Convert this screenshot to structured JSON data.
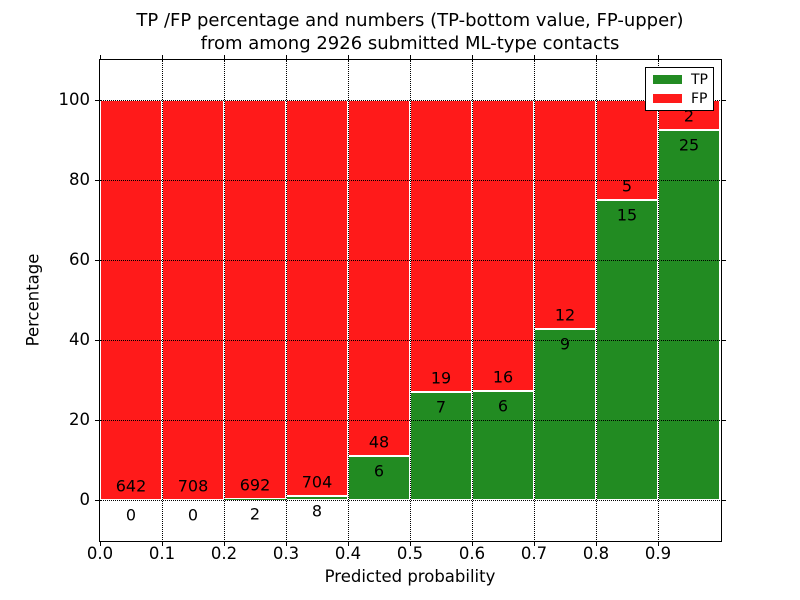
{
  "title": {
    "line1": "TP /FP percentage and numbers (TP-bottom value, FP-upper)",
    "line2": "from among 2926 submitted ML-type contacts"
  },
  "chart_data": {
    "type": "bar",
    "subtype": "stacked-percentage",
    "title": "TP /FP percentage and numbers (TP-bottom value, FP-upper) from among 2926 submitted ML-type contacts",
    "xlabel": "Predicted probability",
    "ylabel": "Percentage",
    "bin_edges": [
      0.0,
      0.1,
      0.2,
      0.3,
      0.4,
      0.5,
      0.6,
      0.7,
      0.8,
      0.9,
      1.0
    ],
    "series": [
      {
        "name": "TP",
        "color": "#228b22",
        "counts": [
          0,
          0,
          2,
          8,
          6,
          7,
          6,
          9,
          15,
          25
        ]
      },
      {
        "name": "FP",
        "color": "#ff1a1a",
        "counts": [
          642,
          708,
          692,
          704,
          48,
          19,
          16,
          12,
          5,
          2
        ]
      }
    ],
    "tp_percent": [
      0.0,
      0.0,
      0.29,
      1.12,
      11.11,
      26.92,
      27.27,
      42.86,
      75.0,
      92.59
    ],
    "xlim": [
      0.0,
      1.0
    ],
    "ylim": [
      -10,
      110
    ],
    "xticks": [
      0.0,
      0.1,
      0.2,
      0.3,
      0.4,
      0.5,
      0.6,
      0.7,
      0.8,
      0.9
    ],
    "xtick_labels": [
      "0.0",
      "0.1",
      "0.2",
      "0.3",
      "0.4",
      "0.5",
      "0.6",
      "0.7",
      "0.8",
      "0.9"
    ],
    "yticks": [
      0,
      20,
      40,
      60,
      80,
      100
    ],
    "ytick_labels": [
      "0",
      "20",
      "40",
      "60",
      "80",
      "100"
    ],
    "grid": "dotted",
    "legend": {
      "position": "upper right",
      "items": [
        {
          "label": "TP",
          "color": "#228b22"
        },
        {
          "label": "FP",
          "color": "#ff1a1a"
        }
      ]
    }
  },
  "colors": {
    "tp_green": "#228b22",
    "fp_red": "#ff1a1a",
    "background": "#ffffff",
    "text": "#000000"
  }
}
